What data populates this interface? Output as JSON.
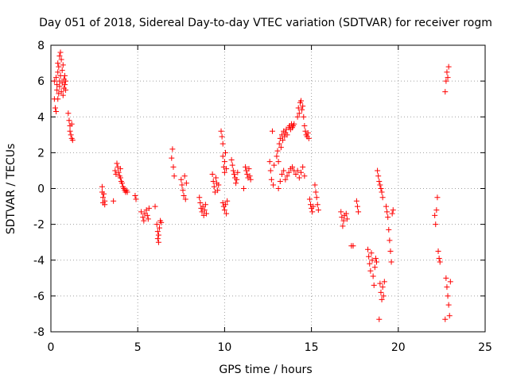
{
  "chart_data": {
    "type": "scatter",
    "title": "Day 051 of 2018, Sidereal Day-to-day VTEC variation (SDTVAR) for receiver rogm",
    "xlabel": "GPS time / hours",
    "ylabel": "SDTVAR / TECUs",
    "xlim": [
      0,
      25
    ],
    "ylim": [
      -8,
      8
    ],
    "xticks": [
      0,
      5,
      10,
      15,
      20,
      25
    ],
    "yticks": [
      -8,
      -6,
      -4,
      -2,
      0,
      2,
      4,
      6,
      8
    ],
    "grid": true,
    "marker": "+",
    "colors": {
      "marker": "#ff0000",
      "grid": "#a0a0a0",
      "axis": "#000000"
    },
    "series": [
      {
        "name": "SDTVAR",
        "points": [
          [
            0.2,
            6.0
          ],
          [
            0.2,
            5.0
          ],
          [
            0.25,
            4.5
          ],
          [
            0.3,
            6.2
          ],
          [
            0.3,
            4.3
          ],
          [
            0.35,
            5.8
          ],
          [
            0.35,
            5.5
          ],
          [
            0.4,
            7.0
          ],
          [
            0.4,
            6.5
          ],
          [
            0.4,
            5.0
          ],
          [
            0.45,
            6.8
          ],
          [
            0.45,
            5.3
          ],
          [
            0.5,
            7.4
          ],
          [
            0.5,
            6.0
          ],
          [
            0.5,
            5.7
          ],
          [
            0.55,
            7.6
          ],
          [
            0.55,
            6.3
          ],
          [
            0.6,
            7.2
          ],
          [
            0.6,
            5.4
          ],
          [
            0.65,
            6.6
          ],
          [
            0.65,
            5.9
          ],
          [
            0.7,
            6.9
          ],
          [
            0.7,
            5.2
          ],
          [
            0.75,
            6.1
          ],
          [
            0.75,
            5.6
          ],
          [
            0.8,
            6.3
          ],
          [
            0.8,
            5.8
          ],
          [
            0.85,
            5.5
          ],
          [
            0.85,
            6.0
          ],
          [
            1.0,
            4.2
          ],
          [
            1.05,
            3.8
          ],
          [
            1.1,
            3.5
          ],
          [
            1.1,
            3.2
          ],
          [
            1.15,
            3.0
          ],
          [
            1.2,
            2.8
          ],
          [
            1.2,
            3.6
          ],
          [
            1.25,
            2.7
          ],
          [
            2.95,
            0.1
          ],
          [
            2.95,
            -0.2
          ],
          [
            3.0,
            -0.5
          ],
          [
            3.0,
            -0.8
          ],
          [
            3.05,
            -0.3
          ],
          [
            3.1,
            -0.7
          ],
          [
            3.1,
            -0.9
          ],
          [
            3.6,
            -0.7
          ],
          [
            3.7,
            1.0
          ],
          [
            3.75,
            0.8
          ],
          [
            3.8,
            1.4
          ],
          [
            3.85,
            1.2
          ],
          [
            3.9,
            0.9
          ],
          [
            3.95,
            0.7
          ],
          [
            4.0,
            0.6
          ],
          [
            4.0,
            1.1
          ],
          [
            4.05,
            0.4
          ],
          [
            4.1,
            0.3
          ],
          [
            4.15,
            0.1
          ],
          [
            4.2,
            0.0
          ],
          [
            4.25,
            -0.1
          ],
          [
            4.3,
            -0.2
          ],
          [
            4.35,
            -0.1
          ],
          [
            4.4,
            -0.2
          ],
          [
            4.85,
            -0.4
          ],
          [
            4.9,
            -0.6
          ],
          [
            5.2,
            -1.3
          ],
          [
            5.3,
            -1.6
          ],
          [
            5.35,
            -1.8
          ],
          [
            5.4,
            -1.4
          ],
          [
            5.5,
            -1.2
          ],
          [
            5.55,
            -1.5
          ],
          [
            5.6,
            -1.7
          ],
          [
            5.65,
            -1.1
          ],
          [
            6.0,
            -1.0
          ],
          [
            6.1,
            -2.0
          ],
          [
            6.15,
            -2.4
          ],
          [
            6.15,
            -2.8
          ],
          [
            6.2,
            -2.6
          ],
          [
            6.2,
            -3.0
          ],
          [
            6.25,
            -2.2
          ],
          [
            6.3,
            -1.8
          ],
          [
            6.35,
            -1.9
          ],
          [
            6.95,
            1.7
          ],
          [
            7.0,
            2.2
          ],
          [
            7.05,
            1.2
          ],
          [
            7.1,
            0.7
          ],
          [
            7.5,
            0.5
          ],
          [
            7.55,
            0.2
          ],
          [
            7.6,
            -0.1
          ],
          [
            7.65,
            -0.4
          ],
          [
            7.7,
            0.7
          ],
          [
            7.75,
            -0.6
          ],
          [
            7.8,
            0.3
          ],
          [
            8.55,
            -0.5
          ],
          [
            8.6,
            -0.8
          ],
          [
            8.65,
            -1.1
          ],
          [
            8.7,
            -1.3
          ],
          [
            8.75,
            -1.0
          ],
          [
            8.8,
            -1.5
          ],
          [
            8.85,
            -1.2
          ],
          [
            8.9,
            -0.9
          ],
          [
            8.95,
            -1.4
          ],
          [
            9.3,
            0.8
          ],
          [
            9.35,
            0.4
          ],
          [
            9.4,
            0.1
          ],
          [
            9.45,
            -0.2
          ],
          [
            9.5,
            0.6
          ],
          [
            9.55,
            0.3
          ],
          [
            9.6,
            -0.1
          ],
          [
            9.65,
            0.2
          ],
          [
            9.8,
            3.2
          ],
          [
            9.85,
            2.9
          ],
          [
            9.9,
            2.5
          ],
          [
            9.9,
            1.8
          ],
          [
            9.95,
            1.2
          ],
          [
            10.0,
            0.9
          ],
          [
            10.0,
            1.5
          ],
          [
            10.05,
            2.0
          ],
          [
            10.1,
            1.1
          ],
          [
            9.9,
            -0.8
          ],
          [
            9.95,
            -1.0
          ],
          [
            10.0,
            -1.2
          ],
          [
            10.05,
            -0.9
          ],
          [
            10.1,
            -1.4
          ],
          [
            10.15,
            -0.7
          ],
          [
            10.4,
            1.6
          ],
          [
            10.45,
            1.3
          ],
          [
            10.5,
            1.0
          ],
          [
            10.55,
            0.8
          ],
          [
            10.6,
            0.6
          ],
          [
            10.65,
            0.3
          ],
          [
            10.7,
            0.5
          ],
          [
            10.75,
            0.9
          ],
          [
            11.1,
            0.0
          ],
          [
            11.2,
            1.2
          ],
          [
            11.25,
            1.0
          ],
          [
            11.3,
            0.8
          ],
          [
            11.35,
            0.6
          ],
          [
            11.4,
            1.1
          ],
          [
            11.45,
            0.7
          ],
          [
            11.5,
            0.5
          ],
          [
            12.6,
            1.5
          ],
          [
            12.65,
            1.0
          ],
          [
            12.7,
            0.5
          ],
          [
            12.75,
            3.2
          ],
          [
            12.8,
            0.2
          ],
          [
            12.85,
            1.3
          ],
          [
            13.0,
            1.8
          ],
          [
            13.05,
            2.1
          ],
          [
            13.1,
            1.5
          ],
          [
            13.15,
            2.5
          ],
          [
            13.2,
            2.8
          ],
          [
            13.25,
            2.3
          ],
          [
            13.3,
            3.0
          ],
          [
            13.35,
            2.7
          ],
          [
            13.4,
            3.2
          ],
          [
            13.45,
            2.9
          ],
          [
            13.5,
            3.1
          ],
          [
            13.55,
            3.3
          ],
          [
            13.6,
            3.0
          ],
          [
            13.7,
            3.4
          ],
          [
            13.75,
            3.5
          ],
          [
            13.8,
            3.3
          ],
          [
            13.85,
            3.6
          ],
          [
            13.9,
            3.4
          ],
          [
            13.95,
            3.5
          ],
          [
            14.0,
            3.6
          ],
          [
            13.1,
            0.0
          ],
          [
            13.2,
            0.4
          ],
          [
            13.3,
            0.8
          ],
          [
            13.4,
            1.0
          ],
          [
            13.5,
            0.5
          ],
          [
            13.6,
            0.7
          ],
          [
            13.7,
            0.9
          ],
          [
            13.8,
            1.1
          ],
          [
            13.9,
            1.2
          ],
          [
            14.0,
            1.0
          ],
          [
            14.1,
            0.8
          ],
          [
            14.2,
            1.0
          ],
          [
            14.3,
            0.6
          ],
          [
            14.4,
            0.9
          ],
          [
            14.5,
            1.2
          ],
          [
            14.6,
            0.7
          ],
          [
            14.2,
            4.0
          ],
          [
            14.25,
            4.5
          ],
          [
            14.3,
            4.2
          ],
          [
            14.35,
            4.8
          ],
          [
            14.4,
            4.9
          ],
          [
            14.45,
            4.4
          ],
          [
            14.5,
            4.6
          ],
          [
            14.55,
            4.0
          ],
          [
            14.6,
            3.5
          ],
          [
            14.65,
            3.2
          ],
          [
            14.7,
            3.0
          ],
          [
            14.75,
            2.9
          ],
          [
            14.8,
            3.1
          ],
          [
            14.85,
            2.8
          ],
          [
            14.9,
            -0.6
          ],
          [
            14.95,
            -0.9
          ],
          [
            15.0,
            -1.1
          ],
          [
            15.05,
            -1.3
          ],
          [
            15.1,
            -1.0
          ],
          [
            15.2,
            0.2
          ],
          [
            15.25,
            -0.2
          ],
          [
            15.3,
            -0.5
          ],
          [
            15.35,
            -0.9
          ],
          [
            15.4,
            -1.2
          ],
          [
            16.7,
            -1.3
          ],
          [
            16.75,
            -1.6
          ],
          [
            16.8,
            -2.1
          ],
          [
            16.85,
            -1.8
          ],
          [
            16.9,
            -1.5
          ],
          [
            17.0,
            -1.4
          ],
          [
            17.05,
            -1.7
          ],
          [
            17.3,
            -3.2
          ],
          [
            17.4,
            -3.2
          ],
          [
            17.6,
            -0.7
          ],
          [
            17.65,
            -1.0
          ],
          [
            17.7,
            -1.3
          ],
          [
            18.25,
            -3.4
          ],
          [
            18.3,
            -3.8
          ],
          [
            18.35,
            -4.2
          ],
          [
            18.4,
            -4.6
          ],
          [
            18.45,
            -3.6
          ],
          [
            18.5,
            -4.0
          ],
          [
            18.55,
            -4.9
          ],
          [
            18.6,
            -5.4
          ],
          [
            18.65,
            -4.4
          ],
          [
            18.7,
            -3.9
          ],
          [
            18.75,
            -4.1
          ],
          [
            18.8,
            1.0
          ],
          [
            18.85,
            0.7
          ],
          [
            18.9,
            0.4
          ],
          [
            18.95,
            0.2
          ],
          [
            19.0,
            0.0
          ],
          [
            19.05,
            -0.2
          ],
          [
            19.1,
            -0.5
          ],
          [
            18.95,
            -5.3
          ],
          [
            19.0,
            -5.8
          ],
          [
            19.05,
            -6.2
          ],
          [
            19.1,
            -5.5
          ],
          [
            19.15,
            -6.0
          ],
          [
            19.2,
            -5.2
          ],
          [
            18.9,
            -7.3
          ],
          [
            19.3,
            -1.0
          ],
          [
            19.35,
            -1.3
          ],
          [
            19.4,
            -1.6
          ],
          [
            19.45,
            -2.3
          ],
          [
            19.5,
            -2.9
          ],
          [
            19.55,
            -3.5
          ],
          [
            19.6,
            -4.1
          ],
          [
            19.65,
            -1.4
          ],
          [
            19.7,
            -1.2
          ],
          [
            22.1,
            -1.5
          ],
          [
            22.15,
            -2.0
          ],
          [
            22.2,
            -1.2
          ],
          [
            22.25,
            -0.5
          ],
          [
            22.3,
            -3.5
          ],
          [
            22.35,
            -3.9
          ],
          [
            22.4,
            -4.1
          ],
          [
            22.7,
            5.4
          ],
          [
            22.75,
            6.0
          ],
          [
            22.8,
            6.5
          ],
          [
            22.85,
            6.2
          ],
          [
            22.9,
            6.8
          ],
          [
            22.75,
            -5.0
          ],
          [
            22.8,
            -5.5
          ],
          [
            22.85,
            -6.0
          ],
          [
            22.9,
            -6.5
          ],
          [
            22.95,
            -7.1
          ],
          [
            23.0,
            -5.2
          ],
          [
            22.7,
            -7.3
          ]
        ]
      }
    ]
  }
}
